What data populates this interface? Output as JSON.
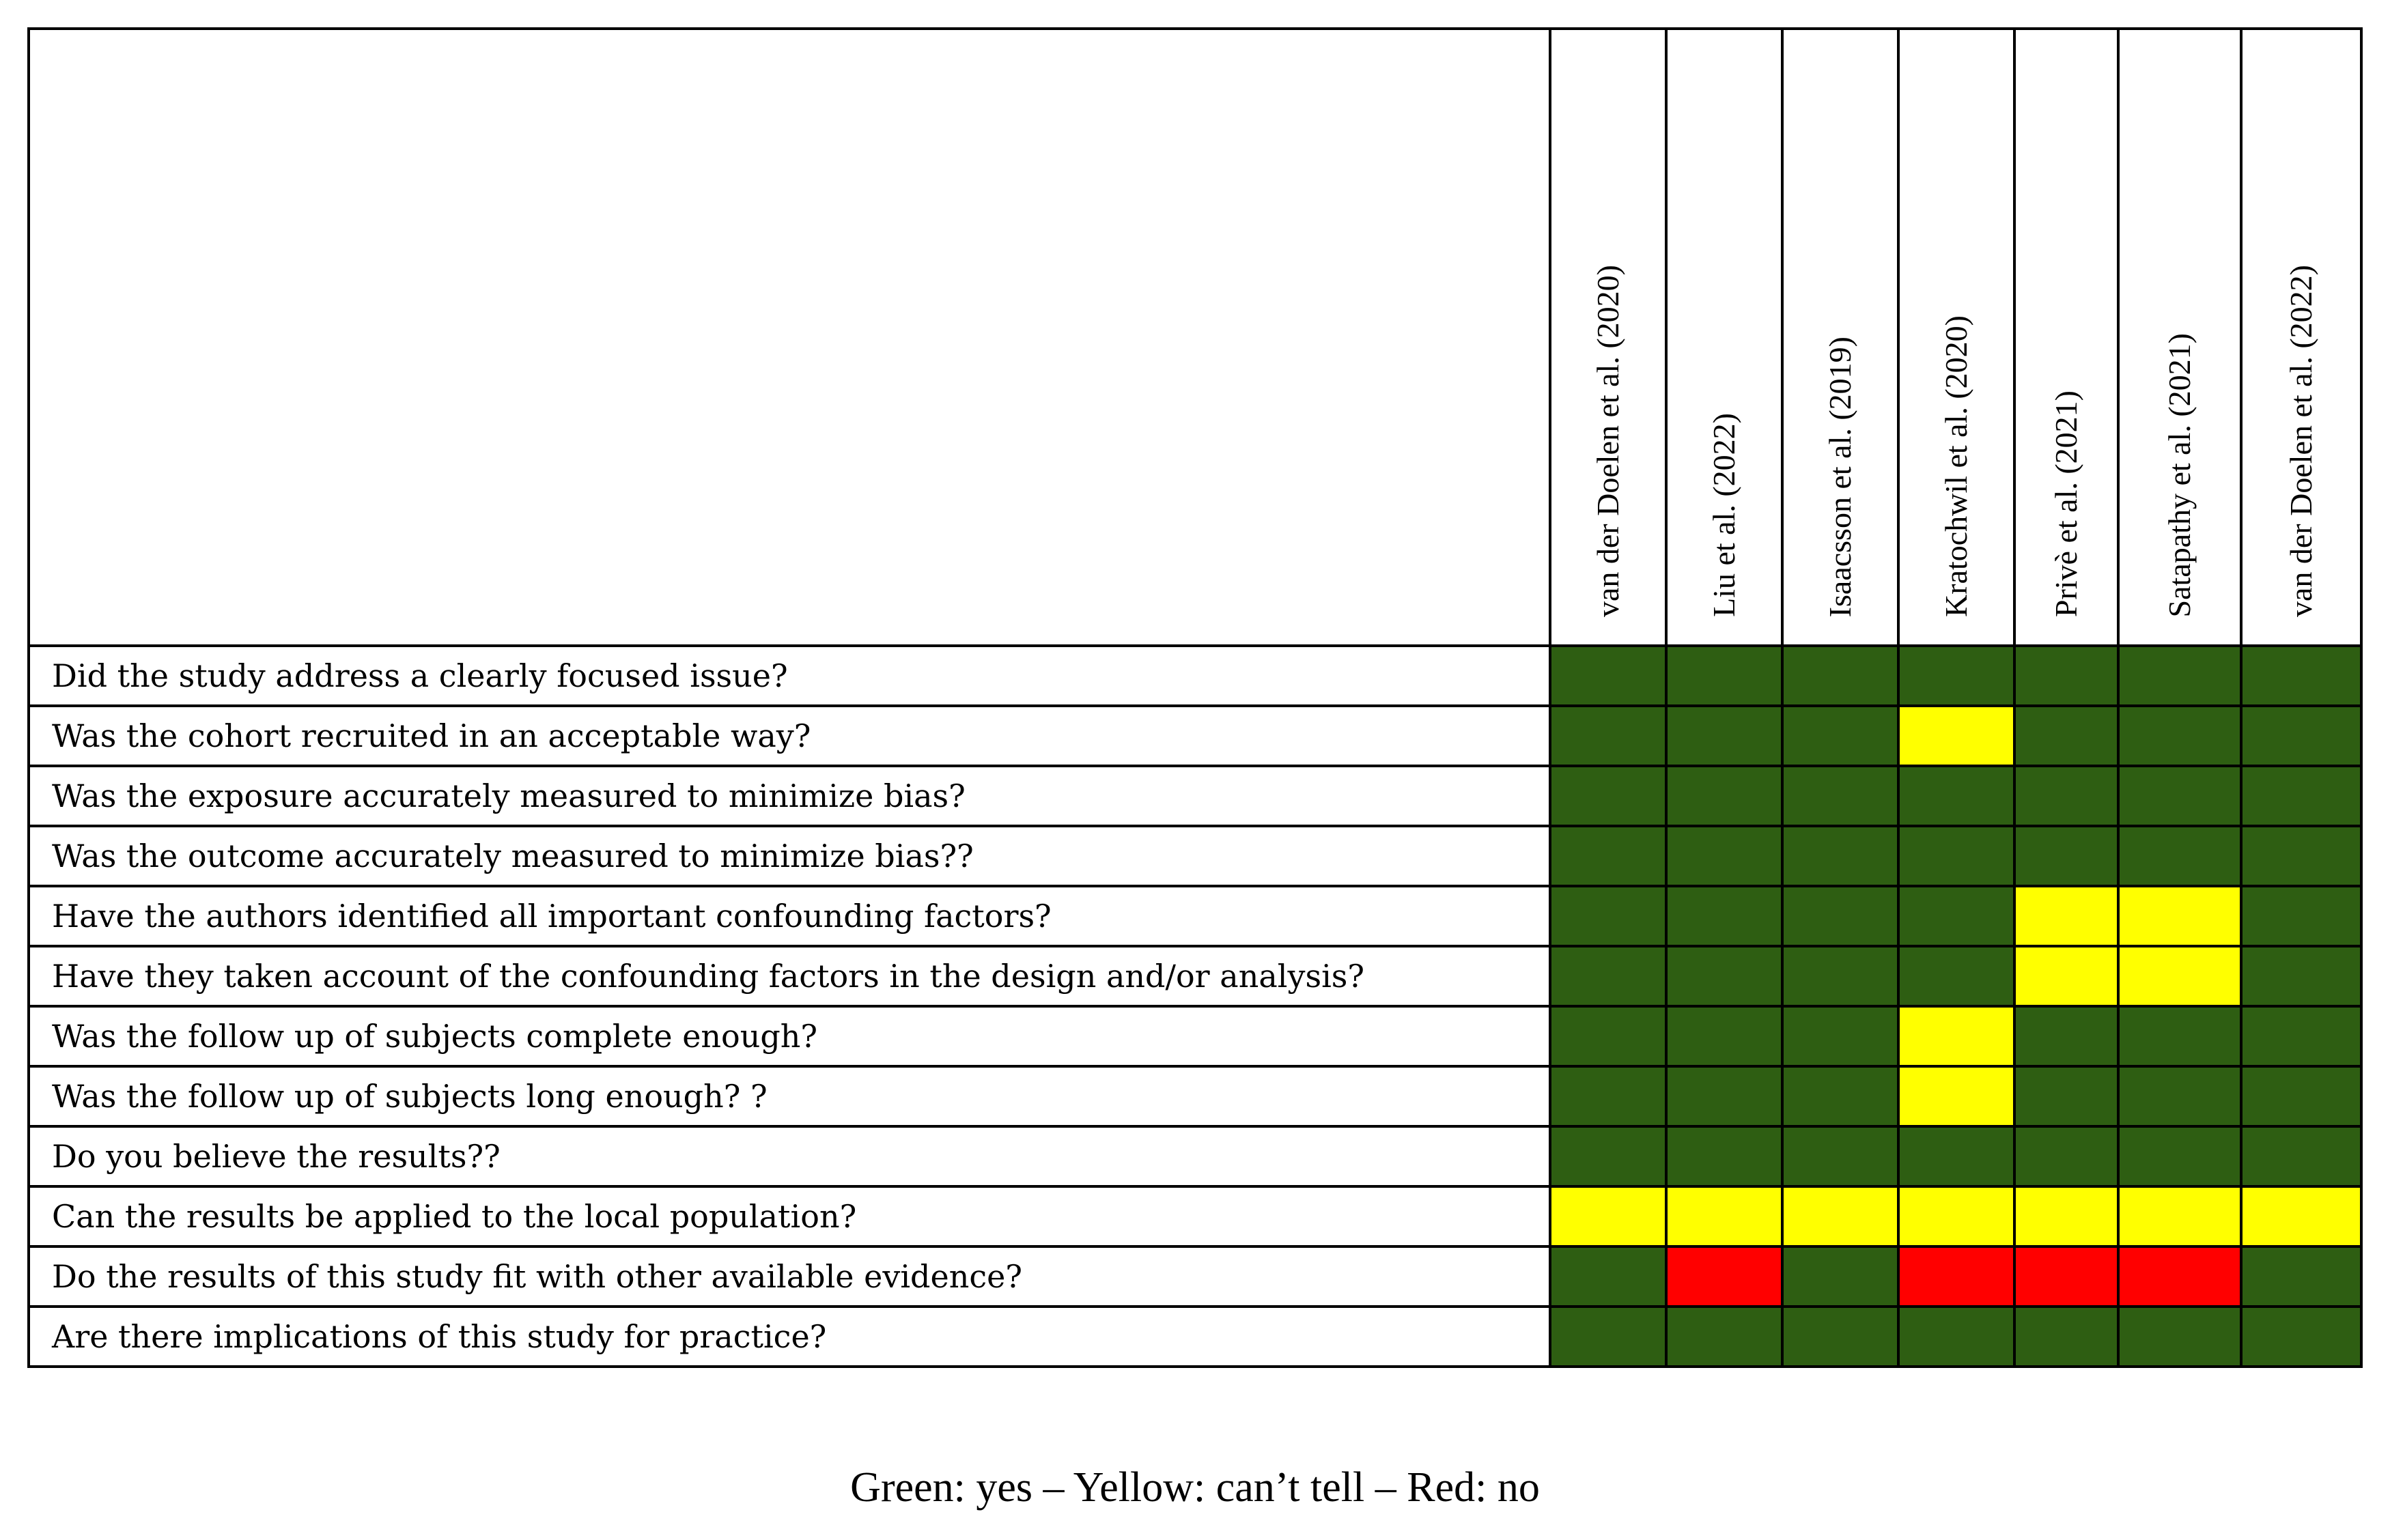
{
  "studies": [
    "van der Doelen et al. (2020)",
    "Liu  et al. (2022)",
    "Isaacsson et al. (2019)",
    "Kratochwil et al. (2020)",
    "Privè et al. (2021)",
    "Satapathy et al. (2021)",
    "van der Doelen et al. (2022)"
  ],
  "questions": [
    "Did the study address a clearly focused issue?",
    "Was the cohort recruited in an acceptable way?",
    "Was the exposure accurately measured to minimize bias?",
    "Was the outcome accurately measured to minimize bias??",
    "Have the authors identified all important confounding factors?",
    "Have they taken account of the confounding factors in the design and/or analysis?",
    "Was the follow up of subjects complete enough?",
    "Was the follow up of subjects long enough? ?",
    "Do you believe the results??",
    "Can the results be applied to the local population?",
    "Do the results of this study fit with other available evidence?",
    "Are there implications of this study for practice?"
  ],
  "ratings": [
    [
      "yes",
      "yes",
      "yes",
      "yes",
      "yes",
      "yes",
      "yes"
    ],
    [
      "yes",
      "yes",
      "yes",
      "cant_tell",
      "yes",
      "yes",
      "yes"
    ],
    [
      "yes",
      "yes",
      "yes",
      "yes",
      "yes",
      "yes",
      "yes"
    ],
    [
      "yes",
      "yes",
      "yes",
      "yes",
      "yes",
      "yes",
      "yes"
    ],
    [
      "yes",
      "yes",
      "yes",
      "yes",
      "cant_tell",
      "cant_tell",
      "yes"
    ],
    [
      "yes",
      "yes",
      "yes",
      "yes",
      "cant_tell",
      "cant_tell",
      "yes"
    ],
    [
      "yes",
      "yes",
      "yes",
      "cant_tell",
      "yes",
      "yes",
      "yes"
    ],
    [
      "yes",
      "yes",
      "yes",
      "cant_tell",
      "yes",
      "yes",
      "yes"
    ],
    [
      "yes",
      "yes",
      "yes",
      "yes",
      "yes",
      "yes",
      "yes"
    ],
    [
      "cant_tell",
      "cant_tell",
      "cant_tell",
      "cant_tell",
      "cant_tell",
      "cant_tell",
      "cant_tell"
    ],
    [
      "yes",
      "no",
      "yes",
      "no",
      "no",
      "no",
      "yes"
    ],
    [
      "yes",
      "yes",
      "yes",
      "yes",
      "yes",
      "yes",
      "yes"
    ]
  ],
  "rating_colors": {
    "yes": "#2e5e12",
    "cant_tell": "#ffff00",
    "no": "#ff0000"
  },
  "legend": "Green: yes – Yellow: can’t tell – Red: no"
}
